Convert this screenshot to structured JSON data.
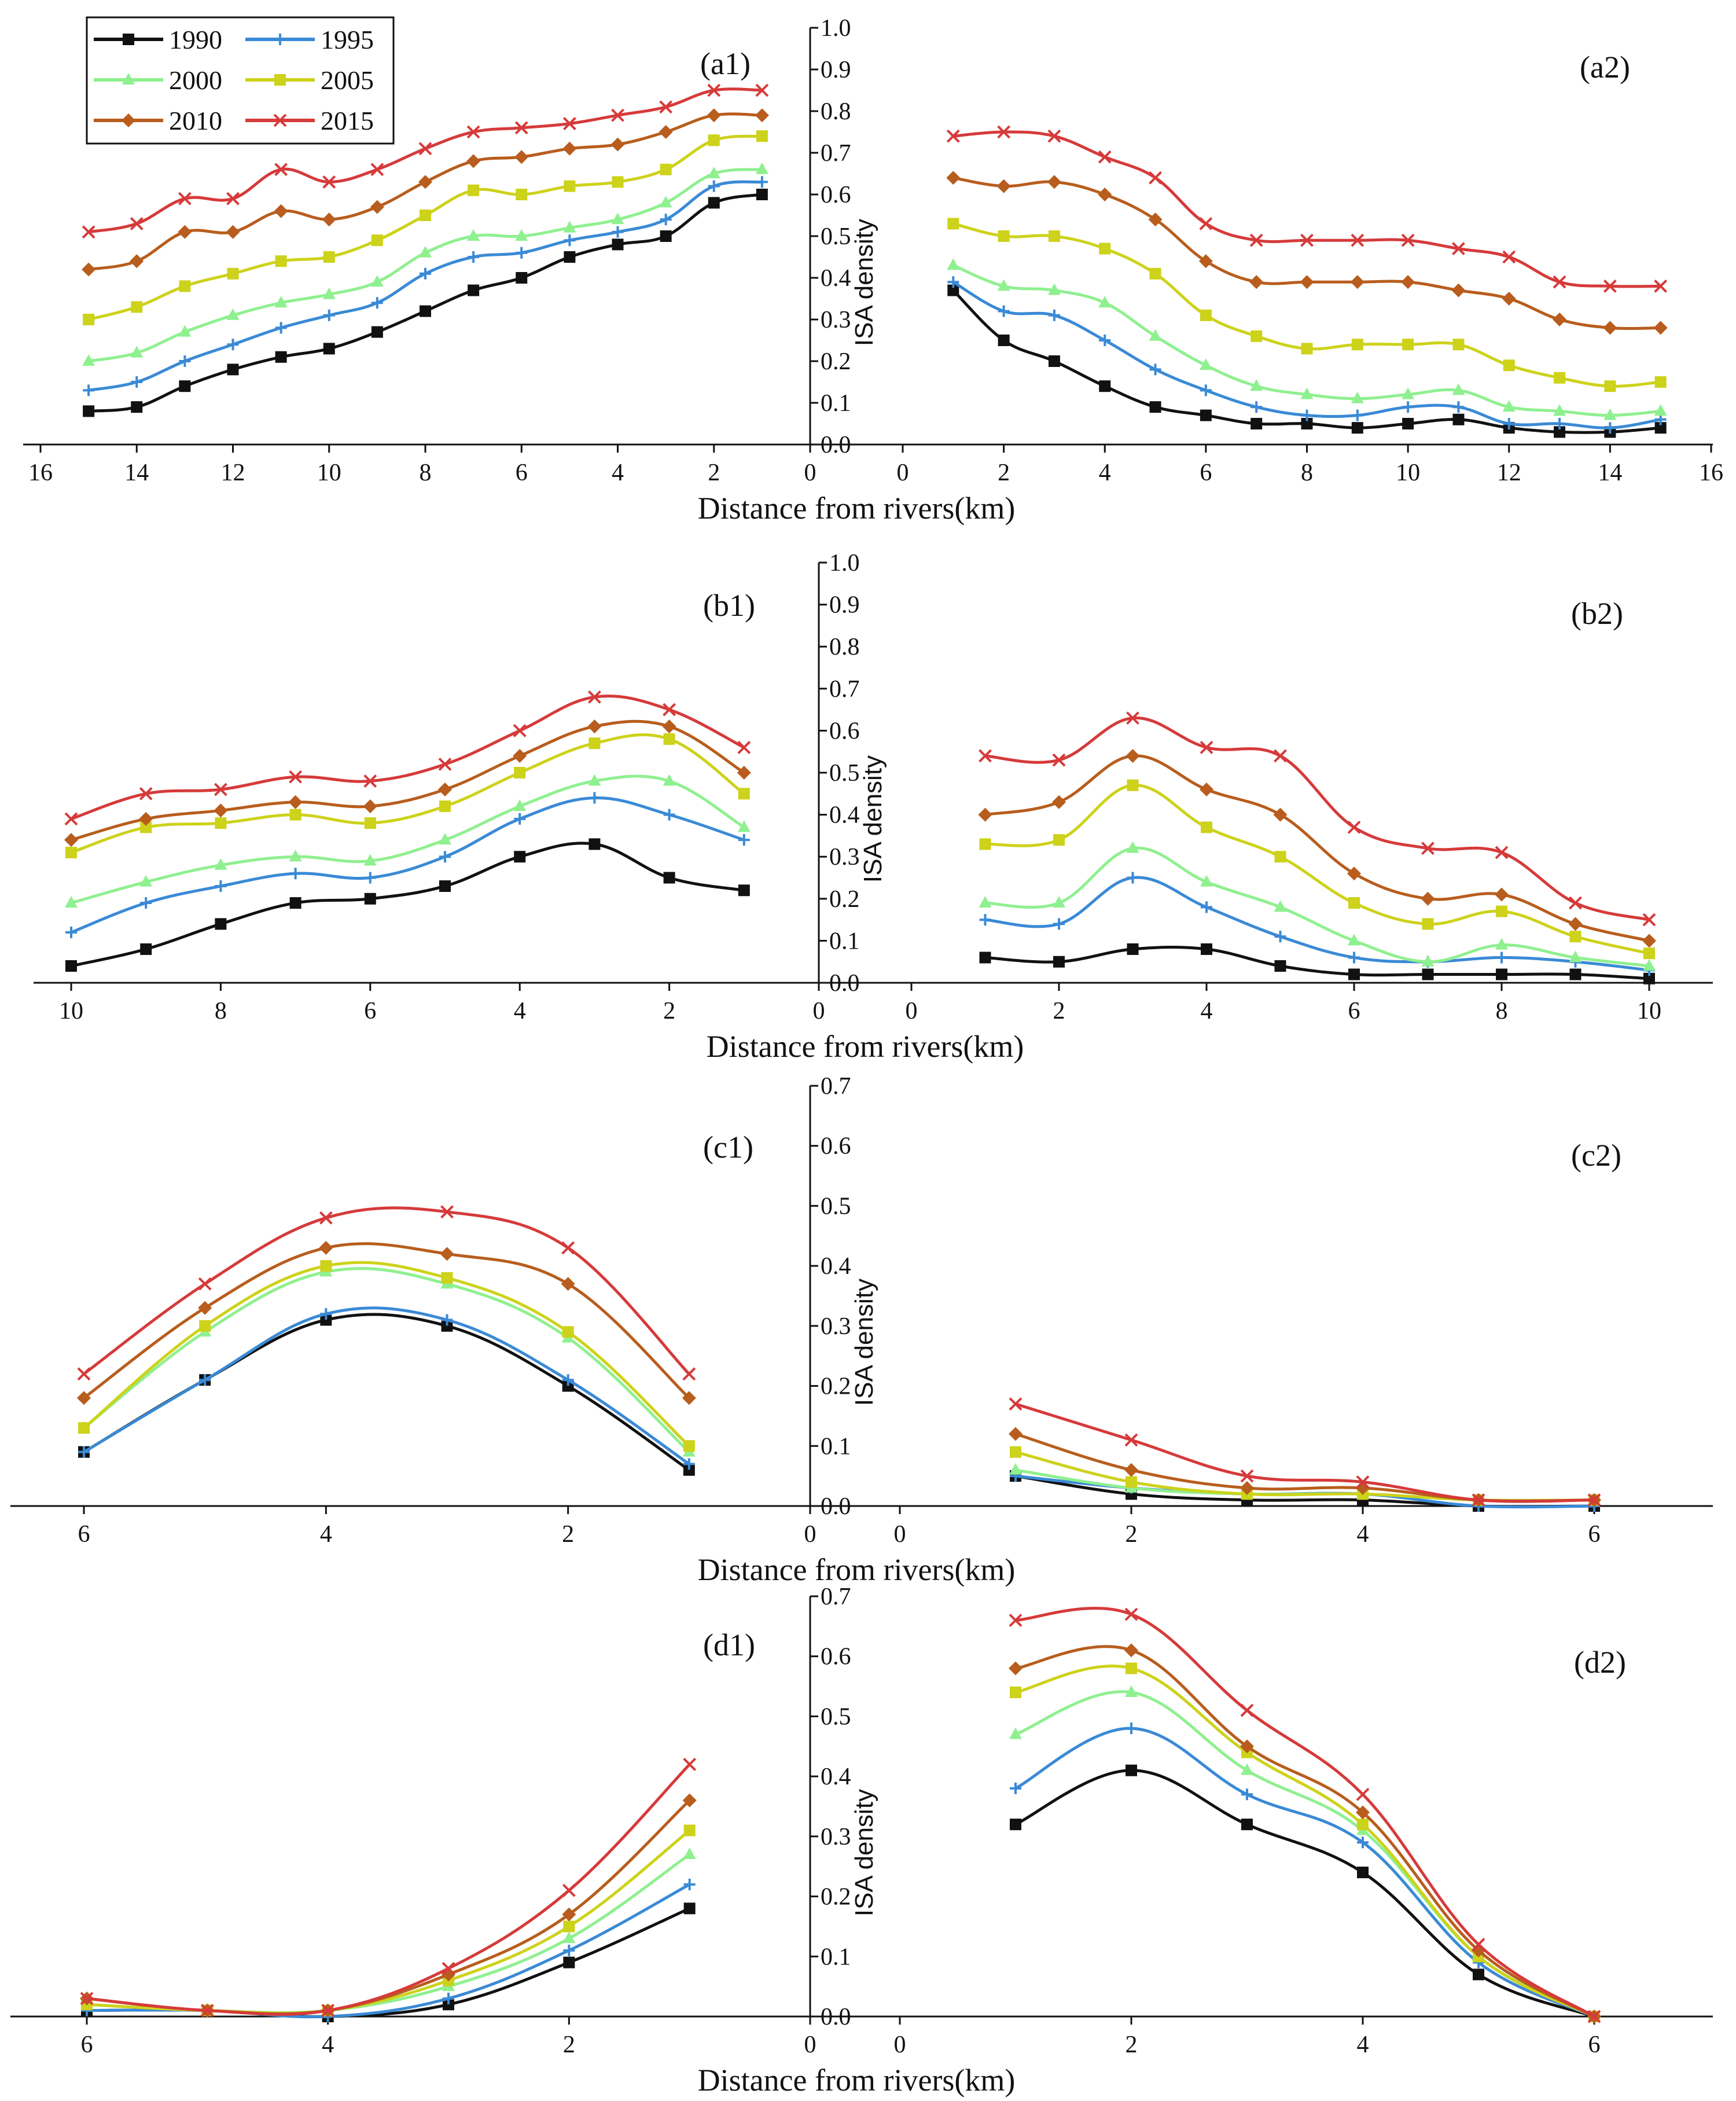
{
  "legend": {
    "entries": [
      {
        "year": "1990",
        "color": "#111111",
        "marker": "square"
      },
      {
        "year": "1995",
        "color": "#3a8ad6",
        "marker": "plus"
      },
      {
        "year": "2000",
        "color": "#8ff08f",
        "marker": "triangle"
      },
      {
        "year": "2005",
        "color": "#cdd21a",
        "marker": "square"
      },
      {
        "year": "2010",
        "color": "#b85d1d",
        "marker": "diamond"
      },
      {
        "year": "2015",
        "color": "#d63a3a",
        "marker": "x"
      }
    ]
  },
  "chart_data": [
    {
      "type": "line",
      "row": "a",
      "left_label": "(a1)",
      "right_label": "(a2)",
      "xlabel": "Distance from rivers(km)",
      "ylabel": "ISA density",
      "ylim": [
        0,
        1.0
      ],
      "yticks": [
        "0.0",
        "0.1",
        "0.2",
        "0.3",
        "0.4",
        "0.5",
        "0.6",
        "0.7",
        "0.8",
        "0.9",
        "1.0"
      ],
      "xmax": 16,
      "left_xticks": [
        "16",
        "14",
        "12",
        "10",
        "8",
        "6",
        "4",
        "2",
        "0"
      ],
      "right_xticks": [
        "0",
        "2",
        "4",
        "6",
        "8",
        "10",
        "12",
        "14",
        "16"
      ],
      "x": [
        15,
        14,
        13,
        12,
        11,
        10,
        9,
        8,
        7,
        6,
        5,
        4,
        3,
        2,
        1
      ],
      "x_right": [
        1,
        2,
        3,
        4,
        5,
        6,
        7,
        8,
        9,
        10,
        11,
        12,
        13,
        14,
        15
      ],
      "left_series": [
        {
          "name": "1990",
          "values": [
            0.08,
            0.09,
            0.14,
            0.18,
            0.21,
            0.23,
            0.27,
            0.32,
            0.37,
            0.4,
            0.45,
            0.48,
            0.5,
            0.58,
            0.6
          ]
        },
        {
          "name": "1995",
          "values": [
            0.13,
            0.15,
            0.2,
            0.24,
            0.28,
            0.31,
            0.34,
            0.41,
            0.45,
            0.46,
            0.49,
            0.51,
            0.54,
            0.62,
            0.63
          ]
        },
        {
          "name": "2000",
          "values": [
            0.2,
            0.22,
            0.27,
            0.31,
            0.34,
            0.36,
            0.39,
            0.46,
            0.5,
            0.5,
            0.52,
            0.54,
            0.58,
            0.65,
            0.66
          ]
        },
        {
          "name": "2005",
          "values": [
            0.3,
            0.33,
            0.38,
            0.41,
            0.44,
            0.45,
            0.49,
            0.55,
            0.61,
            0.6,
            0.62,
            0.63,
            0.66,
            0.73,
            0.74
          ]
        },
        {
          "name": "2010",
          "values": [
            0.42,
            0.44,
            0.51,
            0.51,
            0.56,
            0.54,
            0.57,
            0.63,
            0.68,
            0.69,
            0.71,
            0.72,
            0.75,
            0.79,
            0.79
          ]
        },
        {
          "name": "2015",
          "values": [
            0.51,
            0.53,
            0.59,
            0.59,
            0.66,
            0.63,
            0.66,
            0.71,
            0.75,
            0.76,
            0.77,
            0.79,
            0.81,
            0.85,
            0.85
          ]
        }
      ],
      "right_series": [
        {
          "name": "1990",
          "values": [
            0.37,
            0.25,
            0.2,
            0.14,
            0.09,
            0.07,
            0.05,
            0.05,
            0.04,
            0.05,
            0.06,
            0.04,
            0.03,
            0.03,
            0.04
          ]
        },
        {
          "name": "1995",
          "values": [
            0.39,
            0.32,
            0.31,
            0.25,
            0.18,
            0.13,
            0.09,
            0.07,
            0.07,
            0.09,
            0.09,
            0.05,
            0.05,
            0.04,
            0.06
          ]
        },
        {
          "name": "2000",
          "values": [
            0.43,
            0.38,
            0.37,
            0.34,
            0.26,
            0.19,
            0.14,
            0.12,
            0.11,
            0.12,
            0.13,
            0.09,
            0.08,
            0.07,
            0.08
          ]
        },
        {
          "name": "2005",
          "values": [
            0.53,
            0.5,
            0.5,
            0.47,
            0.41,
            0.31,
            0.26,
            0.23,
            0.24,
            0.24,
            0.24,
            0.19,
            0.16,
            0.14,
            0.15
          ]
        },
        {
          "name": "2010",
          "values": [
            0.64,
            0.62,
            0.63,
            0.6,
            0.54,
            0.44,
            0.39,
            0.39,
            0.39,
            0.39,
            0.37,
            0.35,
            0.3,
            0.28,
            0.28
          ]
        },
        {
          "name": "2015",
          "values": [
            0.74,
            0.75,
            0.74,
            0.69,
            0.64,
            0.53,
            0.49,
            0.49,
            0.49,
            0.49,
            0.47,
            0.45,
            0.39,
            0.38,
            0.38
          ]
        }
      ]
    },
    {
      "type": "line",
      "row": "b",
      "left_label": "(b1)",
      "right_label": "(b2)",
      "xlabel": "Distance from rivers(km)",
      "ylabel": "ISA density",
      "ylim": [
        0,
        1.0
      ],
      "yticks": [
        "0.0",
        "0.1",
        "0.2",
        "0.3",
        "0.4",
        "0.5",
        "0.6",
        "0.7",
        "0.8",
        "0.9",
        "1.0"
      ],
      "xmax": 10,
      "left_xticks": [
        "10",
        "8",
        "6",
        "4",
        "2",
        "0"
      ],
      "right_xticks": [
        "0",
        "2",
        "4",
        "6",
        "8",
        "10"
      ],
      "x": [
        10,
        9,
        8,
        7,
        6,
        5,
        4,
        3,
        2,
        1
      ],
      "x_right": [
        1,
        2,
        3,
        4,
        5,
        6,
        7,
        8,
        9,
        10
      ],
      "left_series": [
        {
          "name": "1990",
          "values": [
            0.04,
            0.08,
            0.14,
            0.19,
            0.2,
            0.23,
            0.3,
            0.33,
            0.25,
            0.22
          ]
        },
        {
          "name": "1995",
          "values": [
            0.12,
            0.19,
            0.23,
            0.26,
            0.25,
            0.3,
            0.39,
            0.44,
            0.4,
            0.34
          ]
        },
        {
          "name": "2000",
          "values": [
            0.19,
            0.24,
            0.28,
            0.3,
            0.29,
            0.34,
            0.42,
            0.48,
            0.48,
            0.37
          ]
        },
        {
          "name": "2005",
          "values": [
            0.31,
            0.37,
            0.38,
            0.4,
            0.38,
            0.42,
            0.5,
            0.57,
            0.58,
            0.45
          ]
        },
        {
          "name": "2010",
          "values": [
            0.34,
            0.39,
            0.41,
            0.43,
            0.42,
            0.46,
            0.54,
            0.61,
            0.61,
            0.5
          ]
        },
        {
          "name": "2015",
          "values": [
            0.39,
            0.45,
            0.46,
            0.49,
            0.48,
            0.52,
            0.6,
            0.68,
            0.65,
            0.56
          ]
        }
      ],
      "right_series": [
        {
          "name": "1990",
          "values": [
            0.06,
            0.05,
            0.08,
            0.08,
            0.04,
            0.02,
            0.02,
            0.02,
            0.02,
            0.01
          ]
        },
        {
          "name": "1995",
          "values": [
            0.15,
            0.14,
            0.25,
            0.18,
            0.11,
            0.06,
            0.05,
            0.06,
            0.05,
            0.03
          ]
        },
        {
          "name": "2000",
          "values": [
            0.19,
            0.19,
            0.32,
            0.24,
            0.18,
            0.1,
            0.05,
            0.09,
            0.06,
            0.04
          ]
        },
        {
          "name": "2005",
          "values": [
            0.33,
            0.34,
            0.47,
            0.37,
            0.3,
            0.19,
            0.14,
            0.17,
            0.11,
            0.07
          ]
        },
        {
          "name": "2010",
          "values": [
            0.4,
            0.43,
            0.54,
            0.46,
            0.4,
            0.26,
            0.2,
            0.21,
            0.14,
            0.1
          ]
        },
        {
          "name": "2015",
          "values": [
            0.54,
            0.53,
            0.63,
            0.56,
            0.54,
            0.37,
            0.32,
            0.31,
            0.19,
            0.15
          ]
        }
      ]
    },
    {
      "type": "line",
      "row": "c",
      "left_label": "(c1)",
      "right_label": "(c2)",
      "xlabel": "Distance from rivers(km)",
      "ylabel": "ISA density",
      "ylim": [
        0,
        0.7
      ],
      "yticks": [
        "0.0",
        "0.1",
        "0.2",
        "0.3",
        "0.4",
        "0.5",
        "0.6",
        "0.7"
      ],
      "xmax": 7,
      "left_xticks": [
        "6",
        "4",
        "2",
        "0"
      ],
      "right_xticks": [
        "0",
        "2",
        "4",
        "6"
      ],
      "x": [
        6,
        5,
        4,
        3,
        2,
        1
      ],
      "x_right": [
        1,
        2,
        3,
        4,
        5,
        6
      ],
      "left_series": [
        {
          "name": "1990",
          "values": [
            0.09,
            0.21,
            0.31,
            0.3,
            0.2,
            0.06
          ]
        },
        {
          "name": "1995",
          "values": [
            0.09,
            0.21,
            0.32,
            0.31,
            0.21,
            0.07
          ]
        },
        {
          "name": "2000",
          "values": [
            0.13,
            0.29,
            0.39,
            0.37,
            0.28,
            0.09
          ]
        },
        {
          "name": "2005",
          "values": [
            0.13,
            0.3,
            0.4,
            0.38,
            0.29,
            0.1
          ]
        },
        {
          "name": "2010",
          "values": [
            0.18,
            0.33,
            0.43,
            0.42,
            0.37,
            0.18
          ]
        },
        {
          "name": "2015",
          "values": [
            0.22,
            0.37,
            0.48,
            0.49,
            0.43,
            0.22
          ]
        }
      ],
      "right_series": [
        {
          "name": "1990",
          "values": [
            0.05,
            0.02,
            0.01,
            0.01,
            0.0,
            0.0
          ]
        },
        {
          "name": "1995",
          "values": [
            0.05,
            0.03,
            0.02,
            0.02,
            0.0,
            0.0
          ]
        },
        {
          "name": "2000",
          "values": [
            0.06,
            0.03,
            0.02,
            0.02,
            0.01,
            0.01
          ]
        },
        {
          "name": "2005",
          "values": [
            0.09,
            0.04,
            0.02,
            0.02,
            0.01,
            0.01
          ]
        },
        {
          "name": "2010",
          "values": [
            0.12,
            0.06,
            0.03,
            0.03,
            0.01,
            0.01
          ]
        },
        {
          "name": "2015",
          "values": [
            0.17,
            0.11,
            0.05,
            0.04,
            0.01,
            0.01
          ]
        }
      ]
    },
    {
      "type": "line",
      "row": "d",
      "left_label": "(d1)",
      "right_label": "(d2)",
      "xlabel": "Distance from rivers(km)",
      "ylabel": "ISA density",
      "ylim": [
        0,
        0.7
      ],
      "yticks": [
        "0.0",
        "0.1",
        "0.2",
        "0.3",
        "0.4",
        "0.5",
        "0.6",
        "0.7"
      ],
      "xmax": 7,
      "left_xticks": [
        "6",
        "4",
        "2",
        "0"
      ],
      "right_xticks": [
        "0",
        "2",
        "4",
        "6"
      ],
      "x": [
        6,
        5,
        4,
        3,
        2,
        1
      ],
      "x_right": [
        1,
        2,
        3,
        4,
        5,
        6
      ],
      "left_series": [
        {
          "name": "1990",
          "values": [
            0.01,
            0.01,
            0.0,
            0.02,
            0.09,
            0.18
          ]
        },
        {
          "name": "1995",
          "values": [
            0.01,
            0.01,
            0.0,
            0.03,
            0.11,
            0.22
          ]
        },
        {
          "name": "2000",
          "values": [
            0.02,
            0.01,
            0.01,
            0.05,
            0.13,
            0.27
          ]
        },
        {
          "name": "2005",
          "values": [
            0.02,
            0.01,
            0.01,
            0.06,
            0.15,
            0.31
          ]
        },
        {
          "name": "2010",
          "values": [
            0.03,
            0.01,
            0.01,
            0.07,
            0.17,
            0.36
          ]
        },
        {
          "name": "2015",
          "values": [
            0.03,
            0.01,
            0.01,
            0.08,
            0.21,
            0.42
          ]
        }
      ],
      "right_series": [
        {
          "name": "1990",
          "values": [
            0.32,
            0.41,
            0.32,
            0.24,
            0.07,
            0.0
          ]
        },
        {
          "name": "1995",
          "values": [
            0.38,
            0.48,
            0.37,
            0.29,
            0.09,
            0.0
          ]
        },
        {
          "name": "2000",
          "values": [
            0.47,
            0.54,
            0.41,
            0.31,
            0.1,
            0.0
          ]
        },
        {
          "name": "2005",
          "values": [
            0.54,
            0.58,
            0.44,
            0.32,
            0.1,
            0.0
          ]
        },
        {
          "name": "2010",
          "values": [
            0.58,
            0.61,
            0.45,
            0.34,
            0.11,
            0.0
          ]
        },
        {
          "name": "2015",
          "values": [
            0.66,
            0.67,
            0.51,
            0.37,
            0.12,
            0.0
          ]
        }
      ]
    }
  ]
}
